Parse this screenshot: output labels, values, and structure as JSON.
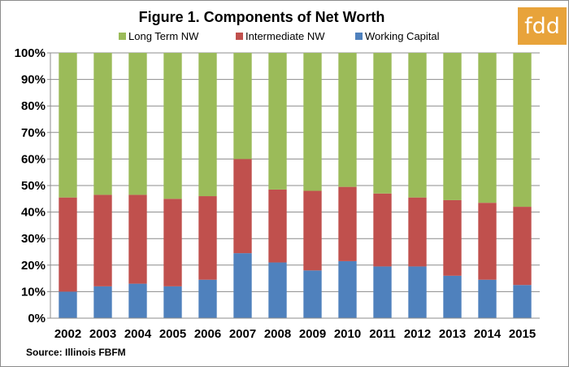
{
  "logo": {
    "text": "fdd",
    "bg_color": "#e8a33a"
  },
  "source": "Source:  Illinois FBFM",
  "chart_data": {
    "type": "bar",
    "stacked": true,
    "title": "Figure 1.  Components of Net Worth",
    "xlabel": "",
    "ylabel": "",
    "ylim": [
      0,
      100
    ],
    "y_ticks": [
      0,
      10,
      20,
      30,
      40,
      50,
      60,
      70,
      80,
      90,
      100
    ],
    "y_tick_labels": [
      "0%",
      "10%",
      "20%",
      "30%",
      "40%",
      "50%",
      "60%",
      "70%",
      "80%",
      "90%",
      "100%"
    ],
    "grid": true,
    "legend_position": "top",
    "categories": [
      "2002",
      "2003",
      "2004",
      "2005",
      "2006",
      "2007",
      "2008",
      "2009",
      "2010",
      "2011",
      "2012",
      "2013",
      "2014",
      "2015"
    ],
    "series": [
      {
        "name": "Working Capital",
        "color": "#4f81bd",
        "values": [
          10,
          12,
          13,
          12,
          14.5,
          24.5,
          21,
          18,
          21.5,
          19.5,
          19.5,
          16,
          14.5,
          12.5
        ]
      },
      {
        "name": "Intermediate NW",
        "color": "#c0504d",
        "values": [
          35.5,
          34.5,
          33.5,
          33,
          31.5,
          35.5,
          27.5,
          30,
          28,
          27.5,
          26,
          28.5,
          29,
          29.5
        ]
      },
      {
        "name": "Long Term NW",
        "color": "#9bbb59",
        "values": [
          54.5,
          53.5,
          53.5,
          55,
          54,
          40,
          51.5,
          52,
          50.5,
          53,
          54.5,
          55.5,
          56.5,
          58
        ]
      }
    ],
    "legend_order": [
      "Long Term NW",
      "Intermediate NW",
      "Working Capital"
    ]
  }
}
